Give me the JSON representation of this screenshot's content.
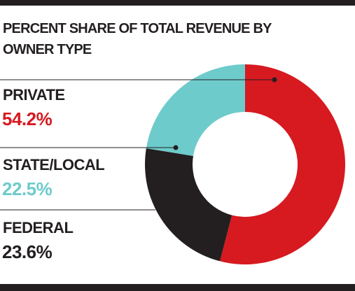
{
  "chart_data": {
    "type": "donut",
    "title": "PERCENT SHARE OF TOTAL REVENUE BY OWNER TYPE",
    "categories": [
      "PRIVATE",
      "STATE/LOCAL",
      "FEDERAL"
    ],
    "values": [
      54.2,
      22.5,
      23.6
    ],
    "value_labels": [
      "54.2%",
      "22.5%",
      "23.6%"
    ],
    "colors": [
      "#d71920",
      "#6ecbcb",
      "#231f20"
    ]
  }
}
